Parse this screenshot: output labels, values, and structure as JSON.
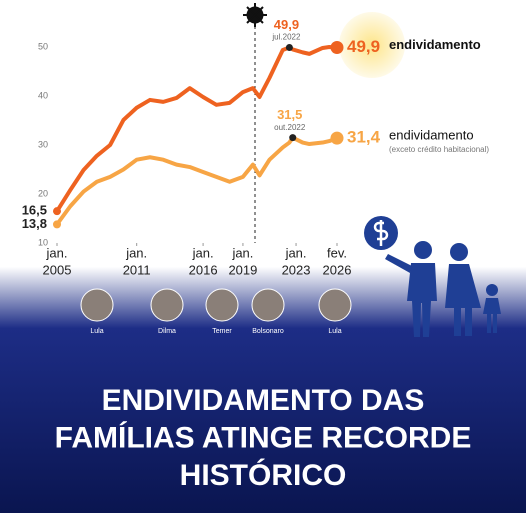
{
  "chart_data": {
    "type": "line",
    "x": [
      "2005-01",
      "2006-01",
      "2007-01",
      "2008-01",
      "2009-01",
      "2010-01",
      "2011-01",
      "2012-01",
      "2013-01",
      "2014-01",
      "2015-01",
      "2016-01",
      "2017-01",
      "2018-01",
      "2019-01",
      "2019-10",
      "2020-04",
      "2021-01",
      "2022-01",
      "2022-07",
      "2022-10",
      "2023-07",
      "2024-01",
      "2025-01",
      "2025-07",
      "2026-02"
    ],
    "series": [
      {
        "name": "endividamento",
        "color": "#ee6220",
        "values": [
          16.5,
          20.8,
          24.9,
          27.8,
          30,
          35.1,
          37.6,
          39.2,
          38.8,
          39.6,
          41.6,
          39.8,
          38.2,
          38.6,
          40.8,
          41.6,
          39.8,
          43.7,
          49.4,
          49.9,
          49.5,
          48.9,
          48.6,
          49.8,
          50,
          49.9
        ],
        "value_labels": [
          "16,5",
          null,
          null,
          null,
          null,
          null,
          null,
          null,
          null,
          null,
          null,
          null,
          null,
          null,
          null,
          null,
          null,
          null,
          null,
          "49,9",
          null,
          null,
          null,
          null,
          null,
          "49,9"
        ],
        "point_notes": [
          null,
          null,
          null,
          null,
          null,
          null,
          null,
          null,
          null,
          null,
          null,
          null,
          null,
          null,
          null,
          null,
          null,
          null,
          null,
          "jul.2022",
          null,
          null,
          null,
          null,
          null,
          null
        ]
      },
      {
        "name": "endividamento",
        "note": "(exceto crédito habitacional)",
        "color": "#f7a545",
        "values": [
          13.8,
          17.5,
          20.5,
          22.5,
          23.5,
          25,
          27,
          27.5,
          27,
          26,
          25.5,
          24.5,
          23.5,
          22.5,
          23.5,
          26,
          23.8,
          27,
          29.5,
          30.5,
          31.5,
          30.5,
          30.2,
          30.5,
          30.8,
          31.4
        ],
        "value_labels": [
          "13,8",
          null,
          null,
          null,
          null,
          null,
          null,
          null,
          null,
          null,
          null,
          null,
          null,
          null,
          null,
          null,
          null,
          null,
          null,
          null,
          "31,5",
          null,
          null,
          null,
          null,
          "31,4"
        ],
        "point_notes": [
          null,
          null,
          null,
          null,
          null,
          null,
          null,
          null,
          null,
          null,
          null,
          null,
          null,
          null,
          null,
          null,
          null,
          null,
          null,
          null,
          "out.2022",
          null,
          null,
          null,
          null,
          null
        ]
      }
    ],
    "xlim": [
      "2005-01",
      "2026-02"
    ],
    "xticks": [
      {
        "value": "2005-01",
        "label": [
          "jan.",
          "2005"
        ]
      },
      {
        "value": "2011-01",
        "label": [
          "jan.",
          "2011"
        ]
      },
      {
        "value": "2016-01",
        "label": [
          "jan.",
          "2016"
        ]
      },
      {
        "value": "2019-01",
        "label": [
          "jan.",
          "2019"
        ]
      },
      {
        "value": "2023-01",
        "label": [
          "jan.",
          "2023"
        ]
      },
      {
        "value": "2026-02",
        "label": [
          "fev.",
          "2026"
        ]
      }
    ],
    "ylim": [
      10,
      59
    ],
    "yticks": [
      10,
      20,
      30,
      40,
      50
    ],
    "grid": false,
    "periods": [
      "Lula",
      "Dilma",
      "Temer",
      "Bolsonaro",
      "Lula"
    ]
  },
  "headline": [
    "ENDIVIDAMENTO DAS",
    "FAMÍLIAS ATINGE RECORDE",
    "HISTÓRICO"
  ]
}
